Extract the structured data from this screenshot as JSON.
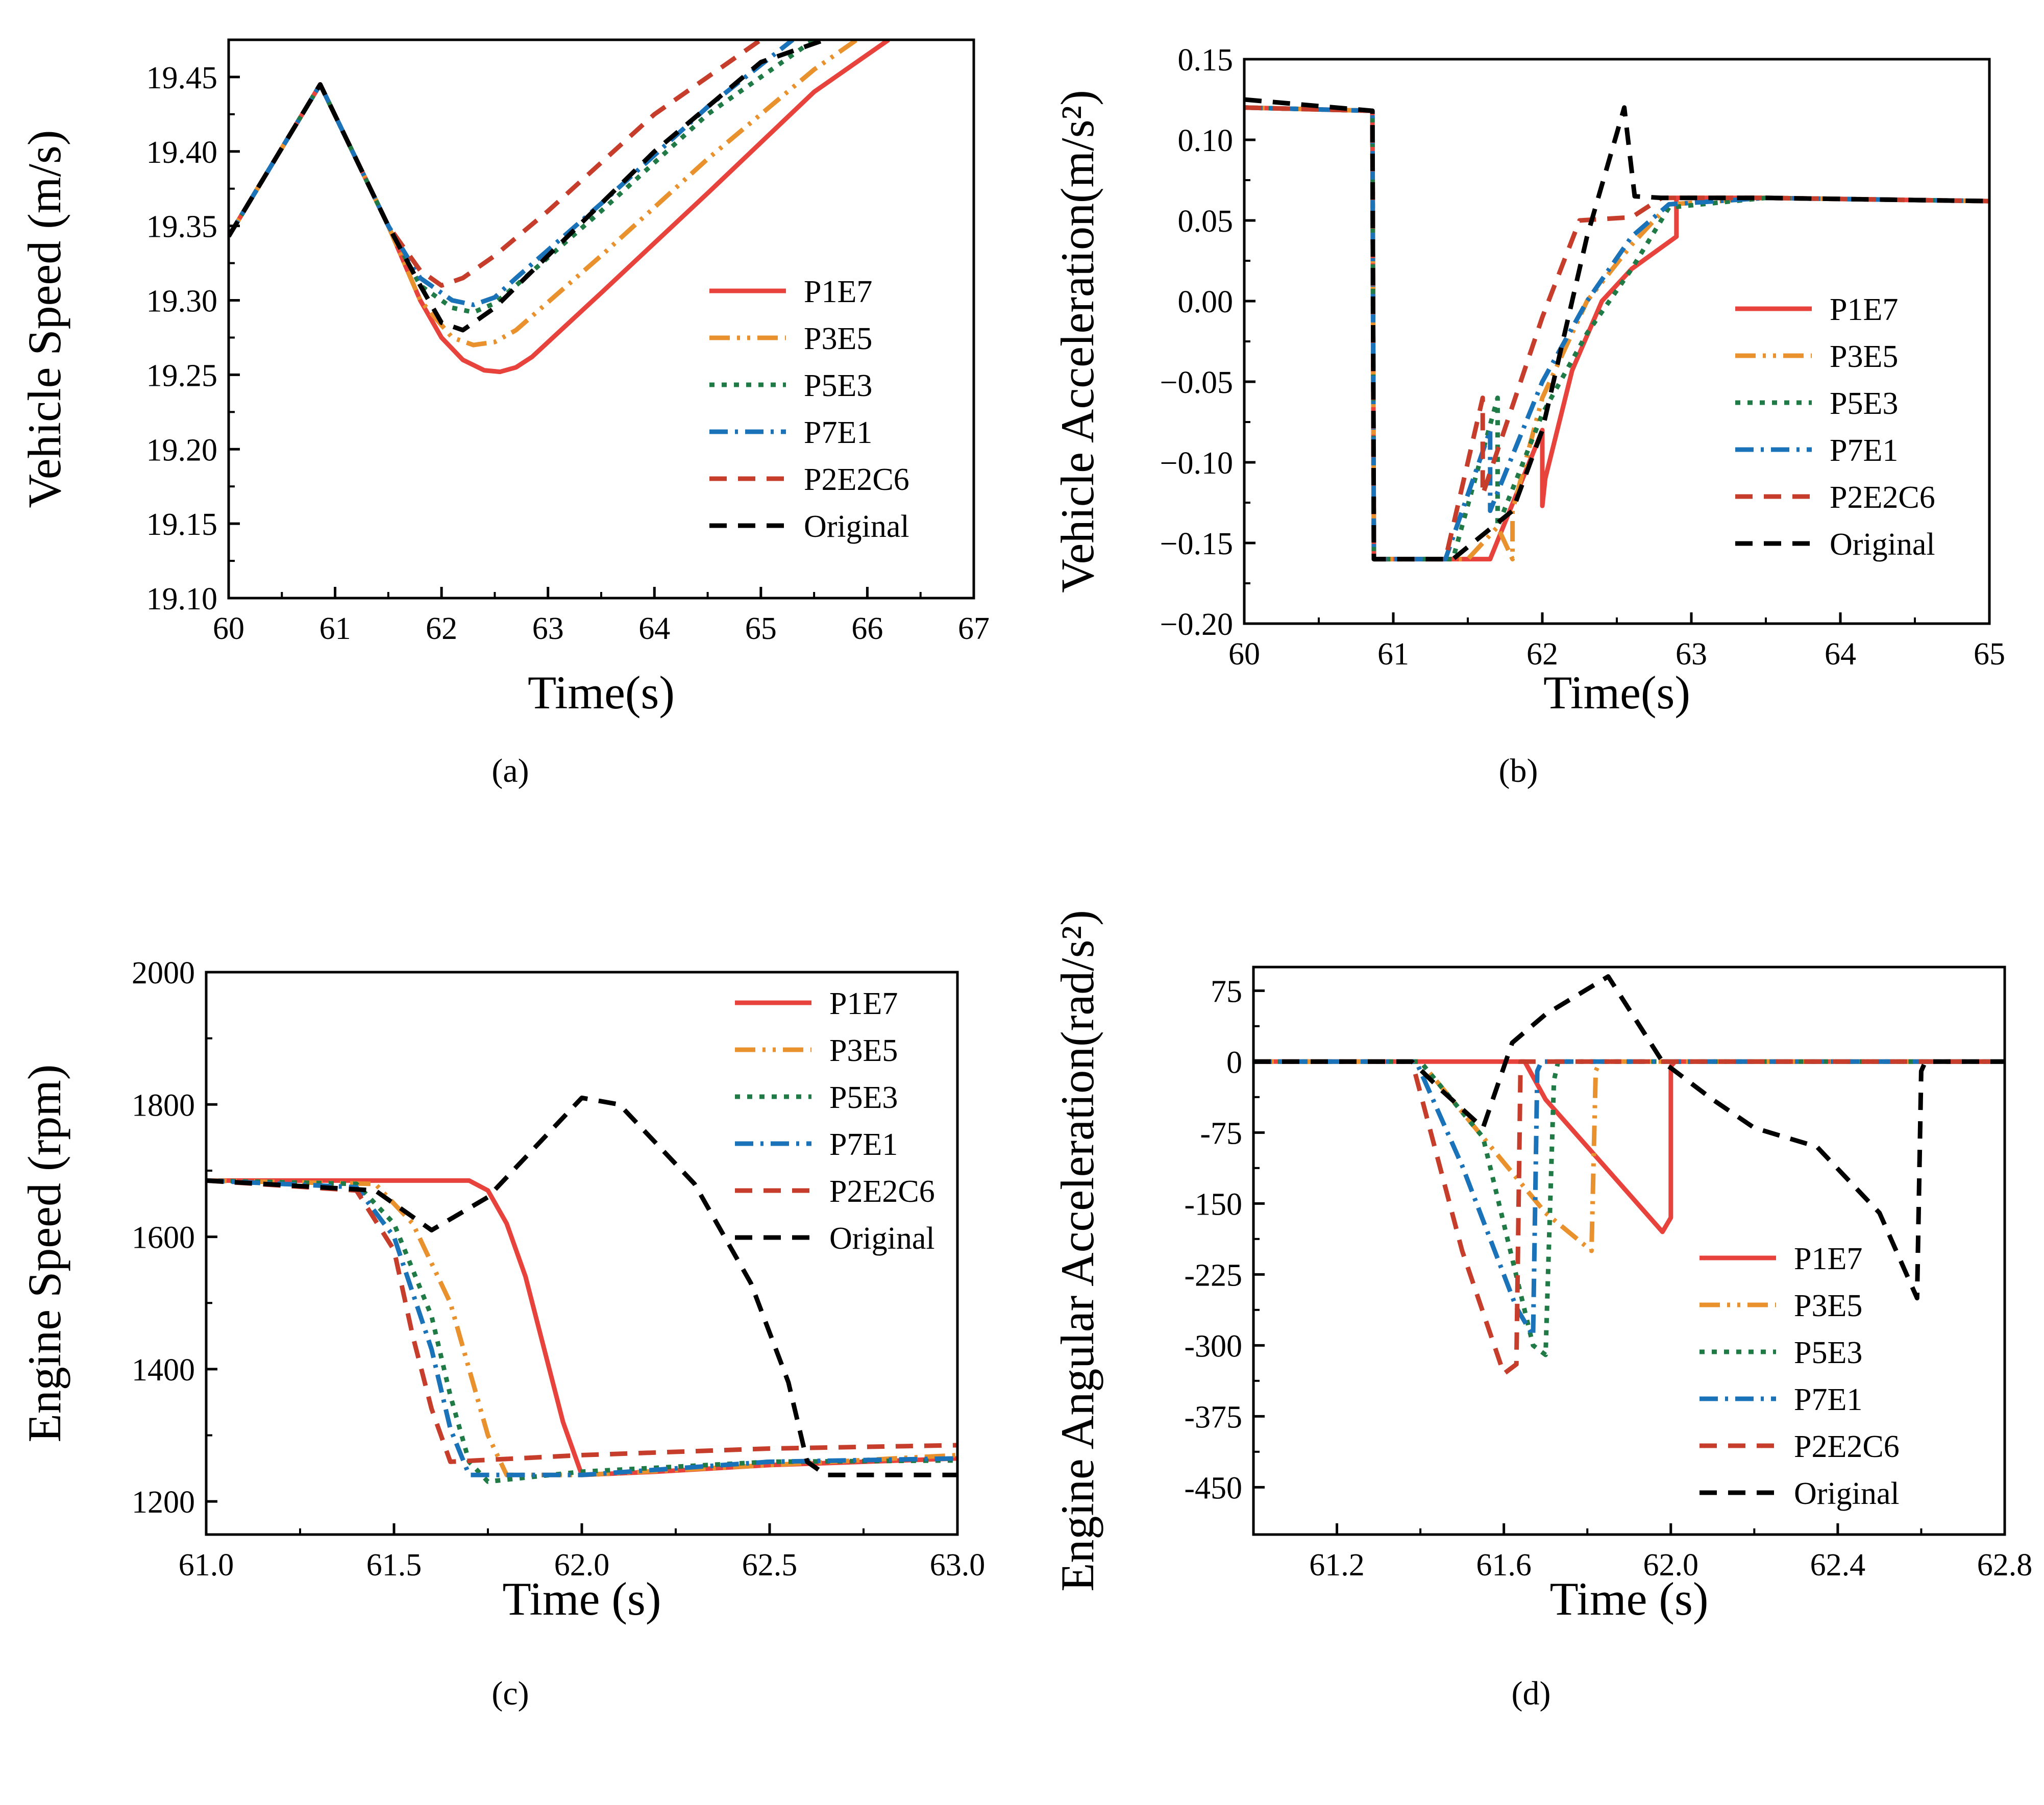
{
  "legend": [
    "P1E7",
    "P3E5",
    "P5E3",
    "P7E1",
    "P2E2C6",
    "Original"
  ],
  "colors": {
    "P1E7": "#e8423c",
    "P3E5": "#e8912d",
    "P5E3": "#1f7a45",
    "P7E1": "#1a72b8",
    "P2E2C6": "#c63d2b",
    "Original": "#000000"
  },
  "chart_data": [
    {
      "type": "line",
      "caption": "(a)",
      "title": "",
      "xlabel": "Time(s)",
      "ylabel": "Vehicle Speed (m/s)",
      "xlim": [
        60,
        67
      ],
      "ylim": [
        19.1,
        19.475
      ],
      "xticks": [
        60,
        61,
        62,
        63,
        64,
        65,
        66,
        67
      ],
      "xtick_labels": [
        "60",
        "61",
        "62",
        "63",
        "64",
        "65",
        "66",
        "67"
      ],
      "yticks": [
        19.1,
        19.15,
        19.2,
        19.25,
        19.3,
        19.35,
        19.4,
        19.45
      ],
      "ytick_labels": [
        "19.10",
        "19.15",
        "19.20",
        "19.25",
        "19.30",
        "19.35",
        "19.40",
        "19.45"
      ],
      "legend_position": "middle-right",
      "series": [
        {
          "name": "P1E7",
          "x": [
            60,
            60.86,
            61.5,
            61.8,
            62.0,
            62.2,
            62.4,
            62.55,
            62.7,
            62.85,
            63.5,
            64.5,
            65.5,
            66.2
          ],
          "y": [
            19.343,
            19.445,
            19.35,
            19.3,
            19.275,
            19.26,
            19.253,
            19.252,
            19.255,
            19.262,
            19.305,
            19.372,
            19.44,
            19.475
          ]
        },
        {
          "name": "P3E5",
          "x": [
            60,
            60.86,
            61.5,
            61.8,
            62.1,
            62.3,
            62.5,
            62.7,
            63.5,
            64.5,
            65.5,
            65.9
          ],
          "y": [
            19.343,
            19.445,
            19.35,
            19.3,
            19.275,
            19.27,
            19.272,
            19.28,
            19.33,
            19.395,
            19.455,
            19.475
          ]
        },
        {
          "name": "P5E3",
          "x": [
            60,
            60.86,
            61.5,
            61.8,
            62.1,
            62.3,
            62.5,
            62.7,
            63.5,
            64.5,
            65.5
          ],
          "y": [
            19.343,
            19.445,
            19.35,
            19.31,
            19.295,
            19.292,
            19.298,
            19.31,
            19.36,
            19.425,
            19.475
          ]
        },
        {
          "name": "P7E1",
          "x": [
            60,
            60.86,
            61.5,
            61.8,
            62.1,
            62.3,
            62.5,
            62.7,
            63.5,
            64.5,
            65.3
          ],
          "y": [
            19.343,
            19.445,
            19.35,
            19.315,
            19.3,
            19.297,
            19.302,
            19.315,
            19.365,
            19.43,
            19.475
          ]
        },
        {
          "name": "P2E2C6",
          "x": [
            60,
            60.86,
            61.5,
            61.8,
            62.0,
            62.2,
            62.5,
            63.0,
            64.0,
            65.0
          ],
          "y": [
            19.343,
            19.445,
            19.35,
            19.32,
            19.31,
            19.315,
            19.33,
            19.36,
            19.425,
            19.475
          ]
        },
        {
          "name": "Original",
          "x": [
            60,
            60.86,
            61.5,
            61.8,
            62.0,
            62.2,
            62.5,
            63.0,
            64.0,
            65.0,
            65.6
          ],
          "y": [
            19.343,
            19.445,
            19.35,
            19.31,
            19.285,
            19.28,
            19.295,
            19.33,
            19.4,
            19.46,
            19.475
          ]
        }
      ]
    },
    {
      "type": "line",
      "caption": "(b)",
      "title": "",
      "xlabel": "Time(s)",
      "ylabel": "Vehicle Acceleration(m/s²)",
      "xlim": [
        60,
        65
      ],
      "ylim": [
        -0.2,
        0.15
      ],
      "xticks": [
        60,
        61,
        62,
        63,
        64,
        65
      ],
      "xtick_labels": [
        "60",
        "61",
        "62",
        "63",
        "64",
        "65"
      ],
      "yticks": [
        -0.2,
        -0.15,
        -0.1,
        -0.05,
        0.0,
        0.05,
        0.1,
        0.15
      ],
      "ytick_labels": [
        "−0.20",
        "−0.15",
        "−0.10",
        "−0.05",
        "0.00",
        "0.05",
        "0.10",
        "0.15"
      ],
      "legend_position": "middle-right",
      "series": [
        {
          "name": "P1E7",
          "x": [
            60,
            60.86,
            60.87,
            61.65,
            62.0,
            62.0,
            62.02,
            62.2,
            62.4,
            62.6,
            62.9,
            62.9,
            63.5,
            65
          ],
          "y": [
            0.12,
            0.118,
            -0.16,
            -0.16,
            -0.08,
            -0.127,
            -0.11,
            -0.043,
            0.0,
            0.02,
            0.04,
            0.064,
            0.064,
            0.062
          ]
        },
        {
          "name": "P3E5",
          "x": [
            60,
            60.86,
            60.87,
            61.5,
            61.7,
            61.8,
            61.8,
            62.0,
            62.3,
            62.6,
            62.85,
            63.5,
            65
          ],
          "y": [
            0.12,
            0.118,
            -0.16,
            -0.16,
            -0.14,
            -0.16,
            -0.13,
            -0.06,
            0.0,
            0.035,
            0.06,
            0.064,
            0.062
          ]
        },
        {
          "name": "P5E3",
          "x": [
            60,
            60.86,
            60.87,
            61.4,
            61.7,
            61.7,
            62.0,
            62.3,
            62.6,
            62.85,
            63.5,
            65
          ],
          "y": [
            0.12,
            0.118,
            -0.16,
            -0.16,
            -0.06,
            -0.14,
            -0.07,
            -0.02,
            0.02,
            0.058,
            0.064,
            0.062
          ]
        },
        {
          "name": "P7E1",
          "x": [
            60,
            60.86,
            60.87,
            61.35,
            61.65,
            61.65,
            62.0,
            62.3,
            62.6,
            62.85,
            63.5,
            65
          ],
          "y": [
            0.12,
            0.118,
            -0.16,
            -0.16,
            -0.08,
            -0.13,
            -0.05,
            0.0,
            0.04,
            0.06,
            0.064,
            0.062
          ]
        },
        {
          "name": "P2E2C6",
          "x": [
            60,
            60.86,
            60.87,
            61.35,
            61.6,
            61.6,
            62.0,
            62.25,
            62.6,
            62.8,
            63.5,
            65
          ],
          "y": [
            0.12,
            0.118,
            -0.16,
            -0.16,
            -0.06,
            -0.12,
            -0.01,
            0.05,
            0.052,
            0.064,
            0.064,
            0.062
          ]
        },
        {
          "name": "Original",
          "x": [
            60,
            60.86,
            60.87,
            61.4,
            61.8,
            62.0,
            62.3,
            62.55,
            62.62,
            62.8,
            63.5,
            65
          ],
          "y": [
            0.125,
            0.118,
            -0.16,
            -0.16,
            -0.13,
            -0.08,
            0.04,
            0.12,
            0.065,
            0.064,
            0.064,
            0.062
          ]
        }
      ]
    },
    {
      "type": "line",
      "caption": "(c)",
      "title": "",
      "xlabel": "Time (s)",
      "ylabel": "Engine Speed (rpm)",
      "xlim": [
        61.0,
        63.0
      ],
      "ylim": [
        1150,
        2000
      ],
      "xticks": [
        61.0,
        61.5,
        62.0,
        62.5,
        63.0
      ],
      "xtick_labels": [
        "61.0",
        "61.5",
        "62.0",
        "62.5",
        "63.0"
      ],
      "yticks": [
        1200,
        1400,
        1600,
        1800,
        2000
      ],
      "ytick_labels": [
        "1200",
        "1400",
        "1600",
        "1800",
        "2000"
      ],
      "legend_position": "top-right",
      "series": [
        {
          "name": "P1E7",
          "x": [
            61.0,
            61.7,
            61.75,
            61.8,
            61.85,
            61.9,
            61.95,
            62.0,
            62.2,
            62.5,
            63.0
          ],
          "y": [
            1685,
            1685,
            1670,
            1620,
            1540,
            1430,
            1320,
            1240,
            1245,
            1255,
            1265
          ]
        },
        {
          "name": "P3E5",
          "x": [
            61.0,
            61.45,
            61.55,
            61.65,
            61.7,
            61.75,
            61.8,
            62.0,
            62.5,
            63.0
          ],
          "y": [
            1685,
            1680,
            1620,
            1500,
            1400,
            1300,
            1240,
            1240,
            1255,
            1270
          ]
        },
        {
          "name": "P5E3",
          "x": [
            61.0,
            61.4,
            61.5,
            61.6,
            61.65,
            61.7,
            61.75,
            62.0,
            62.5,
            63.0
          ],
          "y": [
            1685,
            1680,
            1620,
            1480,
            1360,
            1260,
            1230,
            1245,
            1260,
            1262
          ]
        },
        {
          "name": "P7E1",
          "x": [
            61.0,
            61.4,
            61.5,
            61.6,
            61.65,
            61.7,
            61.75,
            62.0,
            62.5,
            63.0
          ],
          "y": [
            1685,
            1675,
            1600,
            1430,
            1310,
            1240,
            1240,
            1240,
            1260,
            1265
          ]
        },
        {
          "name": "P2E2C6",
          "x": [
            61.0,
            61.4,
            61.5,
            61.55,
            61.6,
            61.65,
            62.0,
            62.5,
            63.0
          ],
          "y": [
            1685,
            1670,
            1580,
            1450,
            1340,
            1260,
            1270,
            1280,
            1285
          ]
        },
        {
          "name": "Original",
          "x": [
            61.0,
            61.45,
            61.6,
            61.75,
            62.0,
            62.1,
            62.3,
            62.45,
            62.55,
            62.6,
            62.65,
            63.0
          ],
          "y": [
            1685,
            1670,
            1610,
            1660,
            1810,
            1800,
            1680,
            1530,
            1380,
            1260,
            1240,
            1240
          ]
        }
      ]
    },
    {
      "type": "line",
      "caption": "(d)",
      "title": "",
      "xlabel": "Time (s)",
      "ylabel": "Engine Angular Acceleration(rad/s²)",
      "xlim": [
        61.0,
        62.8
      ],
      "ylim": [
        -500,
        100
      ],
      "xticks": [
        61.2,
        61.6,
        62.0,
        62.4,
        62.8
      ],
      "xtick_labels": [
        "61.2",
        "61.6",
        "62.0",
        "62.4",
        "62.8"
      ],
      "yticks": [
        -450,
        -375,
        -300,
        -225,
        -150,
        -75,
        0,
        75
      ],
      "ytick_labels": [
        "-450",
        "-375",
        "-300",
        "-225",
        "-150",
        "-75",
        "0",
        "75"
      ],
      "legend_position": "bottom-right",
      "series": [
        {
          "name": "P1E7",
          "x": [
            61.0,
            61.65,
            61.7,
            61.98,
            62.0,
            62.0,
            62.01,
            62.8
          ],
          "y": [
            0,
            0,
            -40,
            -180,
            -165,
            -5,
            0,
            0
          ]
        },
        {
          "name": "P3E5",
          "x": [
            61.0,
            61.4,
            61.55,
            61.7,
            61.81,
            61.82,
            61.83,
            62.8
          ],
          "y": [
            0,
            0,
            -80,
            -160,
            -200,
            -10,
            0,
            0
          ]
        },
        {
          "name": "P5E3",
          "x": [
            61.0,
            61.4,
            61.55,
            61.67,
            61.7,
            61.72,
            61.73,
            62.8
          ],
          "y": [
            0,
            0,
            -80,
            -300,
            -310,
            -20,
            0,
            0
          ]
        },
        {
          "name": "P7E1",
          "x": [
            61.0,
            61.39,
            61.5,
            61.63,
            61.67,
            61.68,
            61.69,
            62.8
          ],
          "y": [
            0,
            0,
            -110,
            -260,
            -290,
            -10,
            0,
            0
          ]
        },
        {
          "name": "P2E2C6",
          "x": [
            61.0,
            61.38,
            61.5,
            61.6,
            61.63,
            61.64,
            62.8
          ],
          "y": [
            0,
            0,
            -200,
            -330,
            -320,
            0,
            0
          ]
        },
        {
          "name": "Original",
          "x": [
            61.0,
            61.38,
            61.45,
            61.55,
            61.62,
            61.7,
            61.85,
            61.98,
            62.1,
            62.2,
            62.35,
            62.5,
            62.59,
            62.6,
            62.61,
            62.8
          ],
          "y": [
            0,
            0,
            -30,
            -70,
            20,
            50,
            90,
            0,
            -40,
            -70,
            -90,
            -160,
            -250,
            -10,
            0,
            0
          ]
        }
      ]
    }
  ]
}
